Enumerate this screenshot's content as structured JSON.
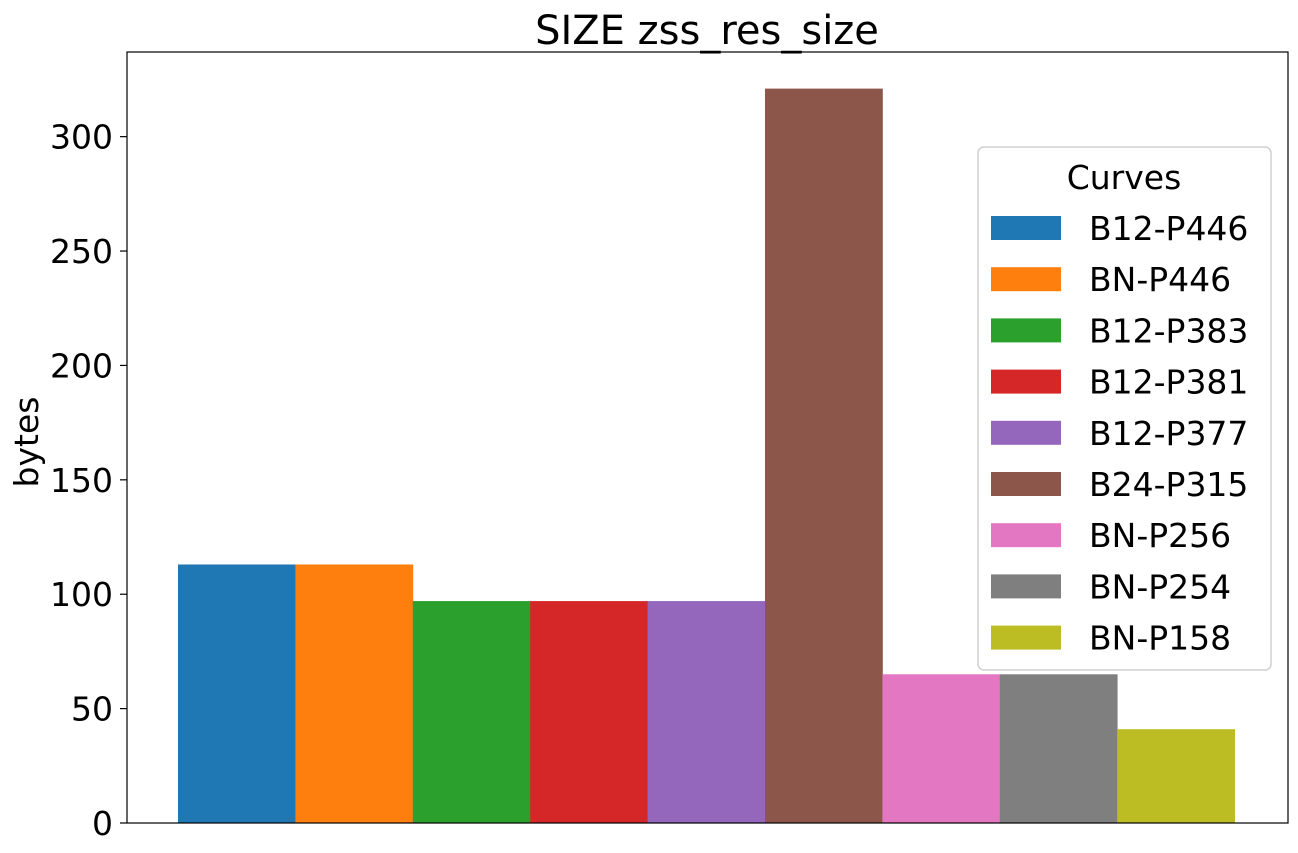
{
  "chart_data": {
    "type": "bar",
    "title": "SIZE zss_res_size",
    "xlabel": "",
    "ylabel": "bytes",
    "ylim": [
      0,
      337
    ],
    "yticks": [
      0,
      50,
      100,
      150,
      200,
      250,
      300
    ],
    "grid": false,
    "legend": {
      "title": "Curves",
      "placement": "right"
    },
    "series": [
      {
        "name": "B12-P446",
        "value": 113,
        "color": "#1f77b4"
      },
      {
        "name": "BN-P446",
        "value": 113,
        "color": "#ff7f0e"
      },
      {
        "name": "B12-P383",
        "value": 97,
        "color": "#2ca02c"
      },
      {
        "name": "B12-P381",
        "value": 97,
        "color": "#d62728"
      },
      {
        "name": "B12-P377",
        "value": 97,
        "color": "#9467bd"
      },
      {
        "name": "B24-P315",
        "value": 321,
        "color": "#8c564b"
      },
      {
        "name": "BN-P256",
        "value": 65,
        "color": "#e377c2"
      },
      {
        "name": "BN-P254",
        "value": 65,
        "color": "#7f7f7f"
      },
      {
        "name": "BN-P158",
        "value": 41,
        "color": "#bcbd22"
      }
    ]
  }
}
